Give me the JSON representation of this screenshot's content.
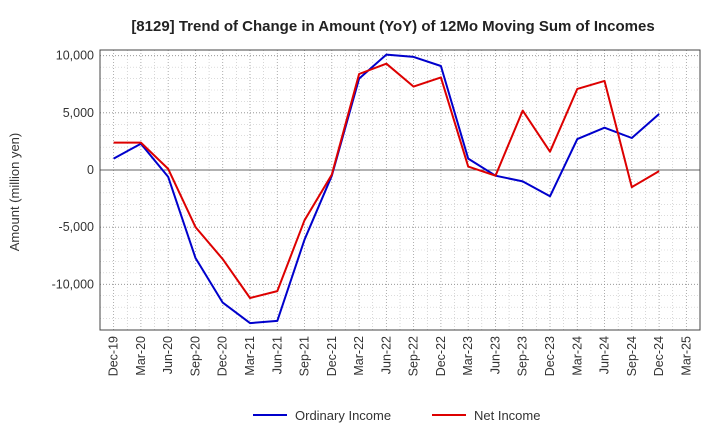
{
  "chart_data": {
    "type": "line",
    "title": "[8129]  Trend of Change in Amount (YoY) of 12Mo Moving Sum of Incomes",
    "xlabel": "",
    "ylabel": "Amount (million yen)",
    "ylim": [
      -14000,
      10500
    ],
    "yticks": [
      10000,
      5000,
      0,
      -5000,
      -10000
    ],
    "ytick_labels": [
      "10,000",
      "5,000",
      "0",
      "-5,000",
      "-10,000"
    ],
    "categories": [
      "Dec-19",
      "Mar-20",
      "Jun-20",
      "Sep-20",
      "Dec-20",
      "Mar-21",
      "Jun-21",
      "Sep-21",
      "Dec-21",
      "Mar-22",
      "Jun-22",
      "Sep-22",
      "Dec-22",
      "Mar-23",
      "Jun-23",
      "Sep-23",
      "Dec-23",
      "Mar-24",
      "Jun-24",
      "Sep-24",
      "Dec-24",
      "Mar-25"
    ],
    "grid": true,
    "legend_position": "bottom-center",
    "series": [
      {
        "name": "Ordinary Income",
        "color": "#0000cc",
        "values": [
          1000,
          2300,
          -600,
          -7700,
          -11600,
          -13400,
          -13200,
          -6100,
          -500,
          8000,
          10100,
          9900,
          9100,
          1000,
          -500,
          -1000,
          -2300,
          2700,
          3700,
          2800,
          4900,
          null
        ]
      },
      {
        "name": "Net Income",
        "color": "#dd0000",
        "values": [
          2400,
          2400,
          100,
          -5000,
          -7800,
          -11200,
          -10600,
          -4400,
          -400,
          8400,
          9300,
          7300,
          8100,
          300,
          -500,
          5200,
          1600,
          7100,
          7800,
          -1500,
          -100,
          null
        ]
      }
    ]
  }
}
